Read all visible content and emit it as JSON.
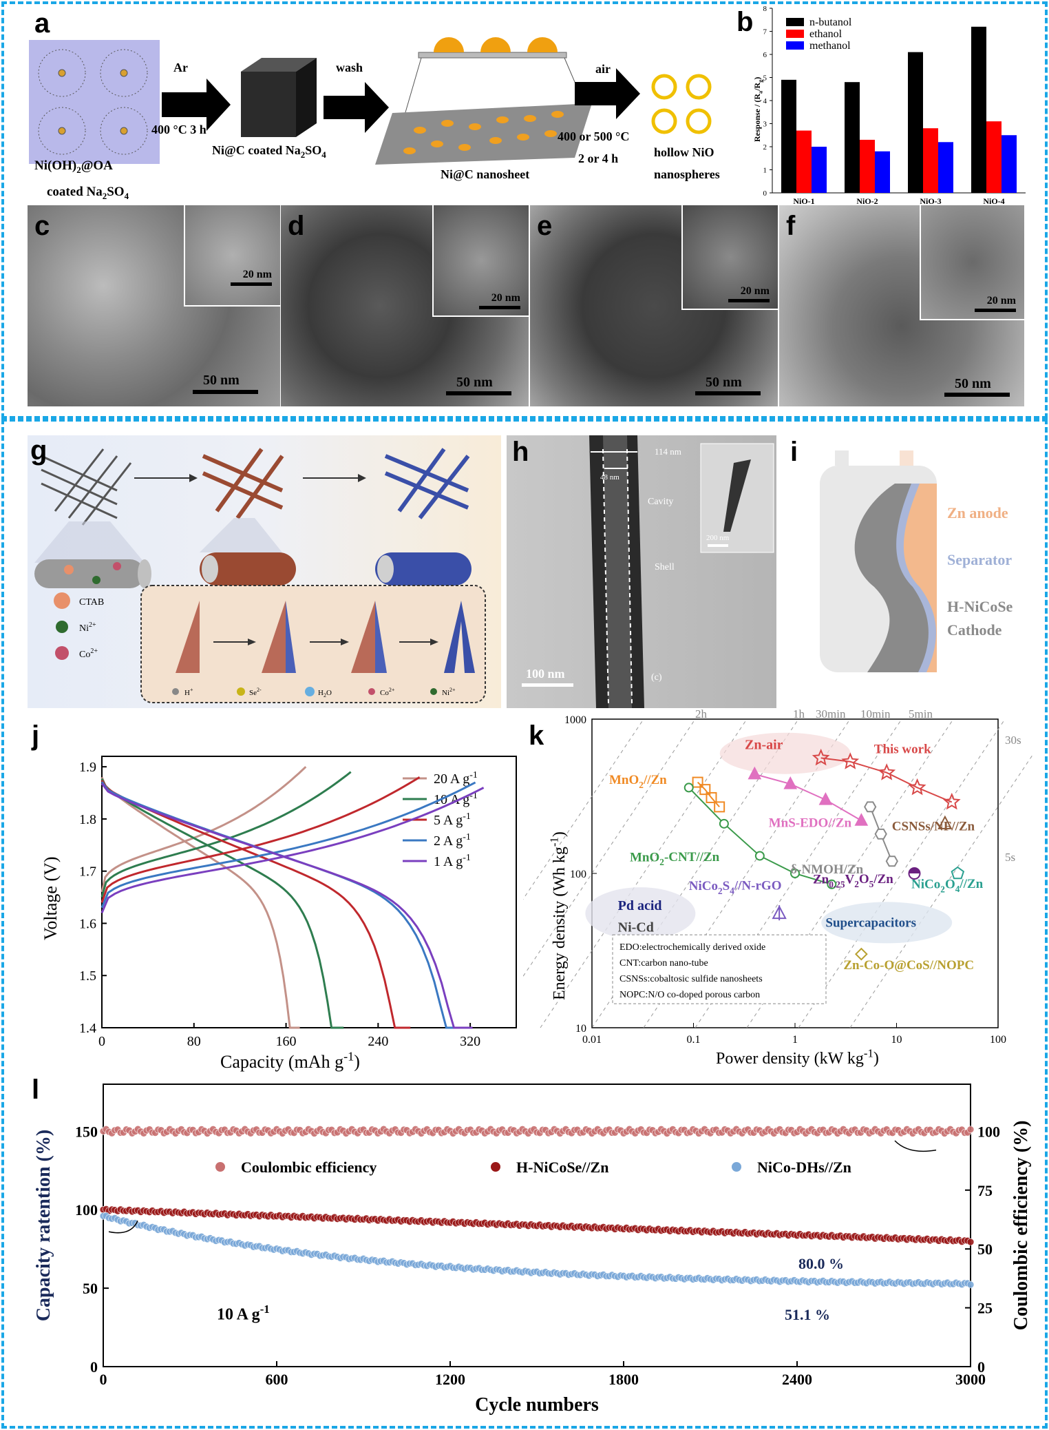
{
  "panels": {
    "a": "a",
    "b": "b",
    "c": "c",
    "d": "d",
    "e": "e",
    "f": "f",
    "g": "g",
    "h": "h",
    "i": "i",
    "j": "j",
    "k": "k",
    "l": "l"
  },
  "panel_a": {
    "step1_label": "Ni(OH)",
    "step1_sub": "2",
    "step1_label2": "@OA",
    "step1_label3": "coated Na",
    "step1_sub2": "2",
    "step1_label4": "SO",
    "step1_sub3": "4",
    "arrow1_top": "Ar",
    "arrow1_bottom": "400 °C 3 h",
    "box_label": "Ni@C coated Na",
    "box_sub": "2",
    "box_label2": "SO",
    "box_sub2": "4",
    "arrow2_top": "wash",
    "sheet_label": "Ni@C nanosheet",
    "arrow3_top": "air",
    "arrow3_bottom1": "400 or 500 °C",
    "arrow3_bottom2": "2 or 4 h",
    "product1": "hollow NiO",
    "product2": "nanospheres"
  },
  "tem_scales": {
    "c_main": "50 nm",
    "c_inset": "20 nm",
    "d_main": "50 nm",
    "d_inset": "20 nm",
    "e_main": "50 nm",
    "e_inset": "20 nm",
    "f_main": "50 nm",
    "f_inset": "20 nm"
  },
  "panel_g": {
    "legend": [
      "CTAB",
      "Ni",
      "Co"
    ],
    "legend_sup": [
      "",
      "2+",
      "2+"
    ],
    "ions": [
      "H",
      "Se",
      "H",
      "Co",
      "Ni"
    ],
    "ions_sup": [
      "+",
      "2-",
      "",
      "2+",
      "2+"
    ],
    "ions_sub": [
      "",
      "",
      "2",
      "",
      ""
    ],
    "ions_tail": [
      "",
      "",
      "O",
      "",
      ""
    ],
    "colors": {
      "ctab": "#e8906a",
      "ni": "#2f6b2f",
      "co": "#c2506a",
      "brown": "#9a4a32",
      "blue": "#3a4fa8"
    }
  },
  "panel_h": {
    "w114": "114 nm",
    "w48": "48 nm",
    "cavity": "Cavity",
    "shell": "Shell",
    "scale_main": "100 nm",
    "scale_inset": "200 nm",
    "marker": "(c)"
  },
  "panel_i": {
    "layers": [
      "Zn anode",
      "Separator",
      "H-NiCoSe",
      "Cathode"
    ],
    "colors": {
      "zn": "#f3b98d",
      "sep": "#a9b6d9",
      "cathode": "#8a8a8a"
    }
  },
  "chart_data": [
    {
      "id": "b",
      "type": "bar",
      "categories": [
        "NiO-1",
        "NiO-2",
        "NiO-3",
        "NiO-4"
      ],
      "series": [
        {
          "name": "n-butanol",
          "color": "#000000",
          "values": [
            4.9,
            4.8,
            6.1,
            7.2
          ]
        },
        {
          "name": "ethanol",
          "color": "#ff0000",
          "values": [
            2.7,
            2.3,
            2.8,
            3.1
          ]
        },
        {
          "name": "methanol",
          "color": "#0000ff",
          "values": [
            2.0,
            1.8,
            2.2,
            2.5
          ]
        }
      ],
      "ylabel": "Response / (R",
      "ylabel_sub1": "a",
      "ylabel_mid": "/R",
      "ylabel_sub2": "g",
      "ylabel_end": ")",
      "ylim": [
        0,
        8
      ],
      "yticks": [
        "0",
        "1",
        "2",
        "3",
        "4",
        "5",
        "6",
        "7",
        "8"
      ],
      "legend_position": "top-left"
    },
    {
      "id": "j",
      "type": "line",
      "xlabel": "Capacity (mAh g",
      "xlabel_sup": "-1",
      "xlabel_end": ")",
      "ylabel": "Voltage (V)",
      "xlim": [
        0,
        360
      ],
      "ylim": [
        1.4,
        1.92
      ],
      "xticks": [
        "0",
        "80",
        "160",
        "240",
        "320"
      ],
      "yticks": [
        "1.4",
        "1.5",
        "1.6",
        "1.7",
        "1.8",
        "1.9"
      ],
      "series": [
        {
          "name": "20 A g",
          "sup": "-1",
          "color": "#c39188",
          "capacity": 172
        },
        {
          "name": "10 A g",
          "sup": "-1",
          "color": "#2e7d4f",
          "capacity": 210
        },
        {
          "name": "5 A g",
          "sup": "-1",
          "color": "#c0282d",
          "capacity": 268
        },
        {
          "name": "2 A g",
          "sup": "-1",
          "color": "#3a78c2",
          "capacity": 315
        },
        {
          "name": "1 A g",
          "sup": "-1",
          "color": "#7a3fbf",
          "capacity": 322
        }
      ],
      "legend_position": "right"
    },
    {
      "id": "k",
      "type": "scatter",
      "xlabel": "Power density (kW kg",
      "xlabel_sup": "-1",
      "xlabel_end": ")",
      "ylabel": "Energy density (Wh kg",
      "ylabel_sup": "-1",
      "ylabel_end": ")",
      "xscale": "log",
      "yscale": "log",
      "xlim": [
        0.01,
        100
      ],
      "ylim": [
        10,
        1000
      ],
      "xticks": [
        "0.01",
        "0.1",
        "1",
        "10",
        "100"
      ],
      "yticks": [
        "10",
        "100",
        "1000"
      ],
      "time_labels": [
        "2h",
        "1h",
        "30min",
        "10min",
        "5min",
        "30s",
        "5s"
      ],
      "regions": [
        "Zn-air",
        "Pd acid",
        "Ni-Cd",
        "Supercapacitors"
      ],
      "series": [
        {
          "name": "This work",
          "color": "#d84848",
          "marker": "star",
          "x": [
            1.8,
            3.5,
            8,
            16,
            35
          ],
          "y": [
            560,
            530,
            450,
            360,
            290
          ]
        },
        {
          "name": "MnS-EDO//Zn",
          "color": "#e070c0",
          "marker": "triangle",
          "x": [
            0.4,
            0.9,
            2,
            4.5
          ],
          "y": [
            440,
            380,
            300,
            220
          ]
        },
        {
          "name": "MnO",
          "name_sub": "2",
          "name_end": "//Zn",
          "color": "#f08a24",
          "marker": "square",
          "x": [
            0.11,
            0.13,
            0.15,
            0.18
          ],
          "y": [
            390,
            350,
            310,
            270
          ]
        },
        {
          "name": "MnO",
          "name_sub": "2",
          "name_end": "-CNT//Zn",
          "color": "#3a9a4a",
          "marker": "circle",
          "x": [
            0.09,
            0.2,
            0.45,
            1.0,
            2.3
          ],
          "y": [
            360,
            210,
            130,
            100,
            85
          ]
        },
        {
          "name": "δ-NMOH/Zn",
          "color": "#8a8a8a",
          "marker": "hexagon",
          "x": [
            5.5,
            7,
            9
          ],
          "y": [
            270,
            180,
            120
          ]
        },
        {
          "name": "CSNSs/NF//Zn",
          "color": "#8a5a3a",
          "marker": "triangle-open",
          "x": [
            30
          ],
          "y": [
            210
          ]
        },
        {
          "name": "NiCo",
          "name_sub": "2",
          "name_mid": "O",
          "name_sub2": "4",
          "name_end": "//Zn",
          "color": "#2aa090",
          "marker": "pentagon",
          "x": [
            40
          ],
          "y": [
            100
          ]
        },
        {
          "name": "Zn",
          "name_sub": "0.25",
          "name_mid": "V",
          "name_sub2": "2",
          "name_mid2": "O",
          "name_sub3": "5",
          "name_end": "/Zn",
          "color": "#6a2080",
          "marker": "half-circle",
          "x": [
            15
          ],
          "y": [
            100
          ]
        },
        {
          "name": "NiCo",
          "name_sub": "2",
          "name_mid": "S",
          "name_sub2": "4",
          "name_end": "//N-rGO",
          "color": "#7a5ac0",
          "marker": "triangle-cross",
          "x": [
            0.7
          ],
          "y": [
            55
          ]
        },
        {
          "name": "Zn-Co-O@CoS//NOPC",
          "color": "#b8a030",
          "marker": "diamond",
          "x": [
            4.5
          ],
          "y": [
            30
          ]
        }
      ],
      "notes": [
        "EDO:electrochemically derived oxide",
        "CNT:carbon nano-tube",
        "CSNSs:cobaltosic sulfide nanosheets",
        "NOPC:N/O co-doped porous carbon"
      ]
    },
    {
      "id": "l",
      "type": "scatter",
      "xlabel": "Cycle numbers",
      "ylabel_left": "Capacity ratention (%)",
      "ylabel_right": "Coulombic efficiency (%)",
      "xlim": [
        0,
        3000
      ],
      "ylim_left": [
        0,
        180
      ],
      "ylim_right": [
        0,
        120
      ],
      "xticks": [
        "0",
        "600",
        "1200",
        "1800",
        "2400",
        "3000"
      ],
      "yticks_left": [
        "0",
        "50",
        "100",
        "150"
      ],
      "yticks_right": [
        "0",
        "25",
        "50",
        "75",
        "100"
      ],
      "condition": "10 A g",
      "condition_sup": "-1",
      "series": [
        {
          "name": "Coulombic efficiency",
          "color": "#c87070",
          "axis": "right",
          "start": 100,
          "end": 100
        },
        {
          "name": "H-NiCoSe//Zn",
          "color": "#9a1818",
          "axis": "left",
          "start": 100,
          "end": 80,
          "end_label": "80.0 %"
        },
        {
          "name": "NiCo-DHs//Zn",
          "color": "#7aa8d8",
          "axis": "left",
          "start": 96,
          "end": 51,
          "end_label": "51.1 %"
        }
      ]
    }
  ]
}
